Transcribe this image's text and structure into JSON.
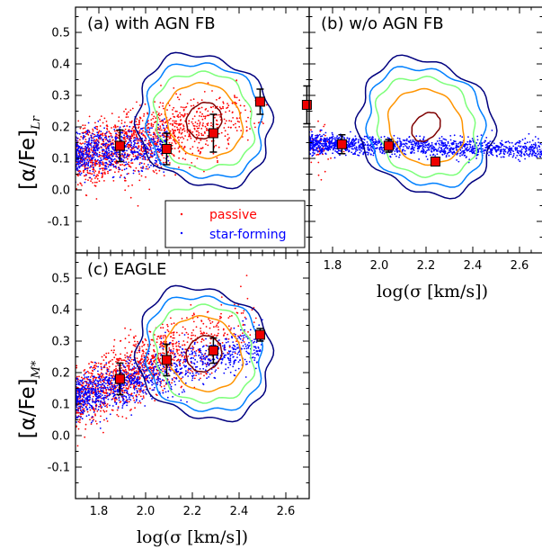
{
  "colors": {
    "passive": "#ff0000",
    "star_forming": "#0000ff",
    "marker_fill": "#ee0000",
    "contours": [
      "#00007f",
      "#0080ff",
      "#7dff7a",
      "#ff9400",
      "#7f0000"
    ]
  },
  "chart_data": [
    {
      "id": "panel-a",
      "type": "scatter",
      "title": "(a) with AGN FB",
      "xlabel": "",
      "ylabel": "[α/Fe]",
      "ylabel_sub": "Lr",
      "xlim": [
        1.7,
        2.7
      ],
      "ylim": [
        -0.2,
        0.58
      ],
      "xticks": [],
      "yticks": [
        "-0.1",
        "0.0",
        "0.1",
        "0.2",
        "0.3",
        "0.4",
        "0.5"
      ],
      "ytick_values": [
        -0.1,
        0.0,
        0.1,
        0.2,
        0.3,
        0.4,
        0.5
      ],
      "legend": {
        "placement": "lower-right",
        "entries": [
          "passive",
          "star-forming"
        ]
      },
      "binned_medians": {
        "x": [
          1.89,
          2.09,
          2.29,
          2.49,
          2.69
        ],
        "y": [
          0.14,
          0.13,
          0.18,
          0.28,
          0.27
        ],
        "err": [
          0.05,
          0.05,
          0.06,
          0.04,
          0.06
        ]
      },
      "contour_center": [
        2.25,
        0.22
      ],
      "contour_levels": [
        [
          0.27,
          0.3
        ],
        [
          0.24,
          0.26
        ],
        [
          0.2,
          0.22
        ],
        [
          0.15,
          0.17
        ],
        [
          0.08,
          0.07
        ]
      ],
      "contour_angle": -50,
      "scatter_model": {
        "passive_count": 1300,
        "sf_count": 700,
        "passive_x": [
          1.7,
          2.55
        ],
        "sf_x": [
          1.7,
          2.1
        ],
        "passive_y0": 0.12,
        "passive_slope": 0.18,
        "sf_y0": 0.12,
        "sf_slope": 0.05
      }
    },
    {
      "id": "panel-b",
      "type": "scatter",
      "title": "(b) w/o AGN FB",
      "xlabel": "log(σ [km/s])",
      "ylabel": "",
      "xlim": [
        1.7,
        2.7
      ],
      "ylim": [
        -0.2,
        0.58
      ],
      "xticks": [
        "1.8",
        "2.0",
        "2.2",
        "2.4",
        "2.6"
      ],
      "xtick_values": [
        1.8,
        2.0,
        2.2,
        2.4,
        2.6
      ],
      "yticks": [],
      "binned_medians": {
        "x": [
          1.84,
          2.04,
          2.24
        ],
        "y": [
          0.145,
          0.14,
          0.09
        ],
        "err": [
          0.03,
          0.02,
          0.01
        ]
      },
      "contour_center": [
        2.2,
        0.2
      ],
      "contour_levels": [
        [
          0.27,
          0.31
        ],
        [
          0.24,
          0.27
        ],
        [
          0.2,
          0.23
        ],
        [
          0.15,
          0.17
        ],
        [
          0.07,
          0.05
        ]
      ],
      "contour_angle": -45,
      "scatter_model": {
        "passive_count": 40,
        "sf_count": 1400,
        "passive_x": [
          1.7,
          1.85
        ],
        "sf_x": [
          1.7,
          2.7
        ],
        "passive_y0": 0.14,
        "passive_slope": 0.0,
        "sf_y0": 0.145,
        "sf_slope": -0.02
      }
    },
    {
      "id": "panel-c",
      "type": "scatter",
      "title": "(c) EAGLE",
      "xlabel": "log(σ [km/s])",
      "ylabel": "[α/Fe]",
      "ylabel_sub": "M*",
      "xlim": [
        1.7,
        2.7
      ],
      "ylim": [
        -0.2,
        0.58
      ],
      "xticks": [
        "1.8",
        "2.0",
        "2.2",
        "2.4",
        "2.6"
      ],
      "xtick_values": [
        1.8,
        2.0,
        2.2,
        2.4,
        2.6
      ],
      "yticks": [
        "-0.1",
        "0.0",
        "0.1",
        "0.2",
        "0.3",
        "0.4",
        "0.5"
      ],
      "ytick_values": [
        -0.1,
        0.0,
        0.1,
        0.2,
        0.3,
        0.4,
        0.5
      ],
      "binned_medians": {
        "x": [
          1.89,
          2.09,
          2.29,
          2.49
        ],
        "y": [
          0.18,
          0.24,
          0.27,
          0.32
        ],
        "err": [
          0.05,
          0.05,
          0.04,
          0.02
        ]
      },
      "contour_center": [
        2.25,
        0.26
      ],
      "contour_levels": [
        [
          0.27,
          0.3
        ],
        [
          0.24,
          0.26
        ],
        [
          0.2,
          0.22
        ],
        [
          0.15,
          0.17
        ],
        [
          0.08,
          0.07
        ]
      ],
      "contour_angle": -50,
      "scatter_model": {
        "passive_count": 1200,
        "sf_count": 1200,
        "passive_x": [
          1.7,
          2.5
        ],
        "sf_x": [
          1.7,
          2.5
        ],
        "passive_y0": 0.15,
        "passive_slope": 0.35,
        "sf_y0": 0.14,
        "sf_slope": 0.22
      }
    }
  ]
}
